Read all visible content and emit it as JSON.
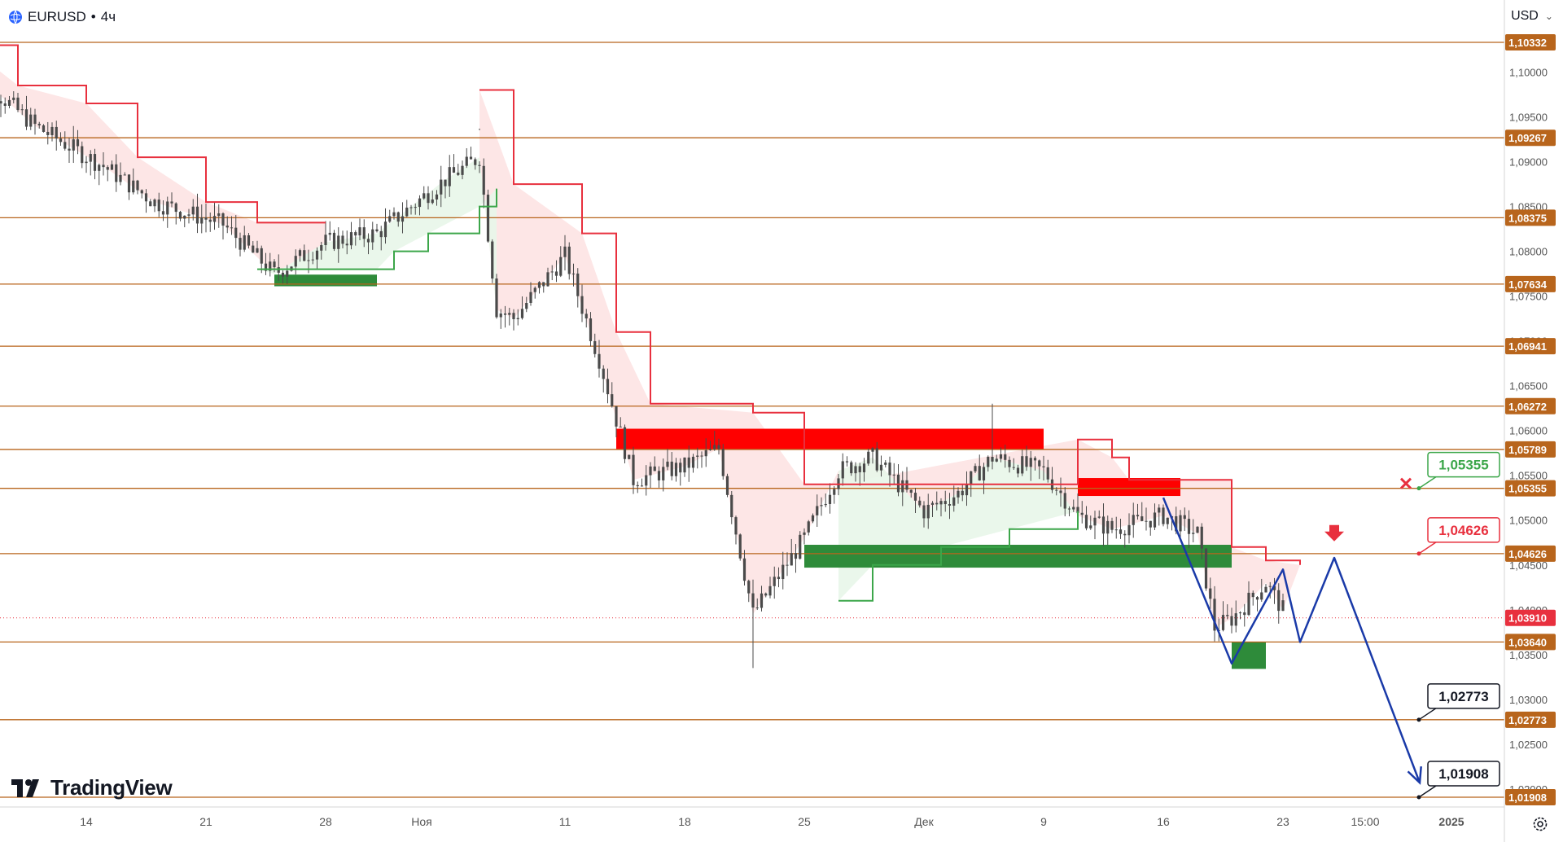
{
  "header": {
    "symbol": "EURUSD",
    "separator": "•",
    "interval": "4ч"
  },
  "currency": {
    "label": "USD"
  },
  "brand": {
    "name": "TradingView"
  },
  "icons": {
    "symbol": "globe-icon",
    "currency_dropdown": "chevron-down-icon",
    "brand": "tradingview-logo-icon",
    "settings": "gear-icon",
    "rejected_marker": "cross-icon",
    "target_marker": "arrow-down-icon"
  },
  "colors": {
    "level_line": "#b8651c",
    "level_tag_bg": "#b8651c",
    "supertrend_down": "#e8303e",
    "supertrend_up": "#3ca64a",
    "down_fill": "#fde3e3",
    "up_fill": "#e8f6e9",
    "supply_zone": "#ff0000",
    "demand_zone": "#2e8b3a",
    "forecast_path": "#1a3aa8",
    "candle": "#4a4a4a",
    "last_price": "#e8303e"
  },
  "chart_data": {
    "type": "candlestick",
    "instrument": "EURUSD",
    "timeframe": "4ч",
    "x_ticks": [
      "14",
      "21",
      "28",
      "Ноя",
      "11",
      "18",
      "25",
      "Дек",
      "9",
      "16",
      "23",
      "15:00",
      "2025"
    ],
    "ylim": [
      1.0175,
      1.1042
    ],
    "y_ticks": [
      "1,10000",
      "1,09500",
      "1,09000",
      "1,08500",
      "1,08000",
      "1,07500",
      "1,07000",
      "1,06500",
      "1,06000",
      "1,05500",
      "1,05000",
      "1,04500",
      "1,04000",
      "1,03500",
      "1,03000",
      "1,02500",
      "1,02000"
    ],
    "levels": [
      {
        "value": 1.10332,
        "label": "1,10332"
      },
      {
        "value": 1.09267,
        "label": "1,09267"
      },
      {
        "value": 1.08375,
        "label": "1,08375"
      },
      {
        "value": 1.07634,
        "label": "1,07634"
      },
      {
        "value": 1.06941,
        "label": "1,06941"
      },
      {
        "value": 1.06272,
        "label": "1,06272"
      },
      {
        "value": 1.05789,
        "label": "1,05789"
      },
      {
        "value": 1.05355,
        "label": "1,05355"
      },
      {
        "value": 1.04626,
        "label": "1,04626"
      },
      {
        "value": 1.0364,
        "label": "1,03640"
      },
      {
        "value": 1.02773,
        "label": "1,02773"
      },
      {
        "value": 1.01908,
        "label": "1,01908"
      }
    ],
    "last_price": {
      "value": 1.0391,
      "label": "1,03910"
    },
    "callouts": [
      {
        "label": "1,05355",
        "value": 1.05355,
        "style": "green"
      },
      {
        "label": "1,04626",
        "value": 1.04626,
        "style": "red"
      },
      {
        "label": "1,02773",
        "value": 1.02773,
        "style": "black"
      },
      {
        "label": "1,01908",
        "value": 1.01908,
        "style": "black"
      }
    ],
    "supply_zones": [
      {
        "from": "2024-11-14",
        "to": "2024-12-09",
        "low": 1.05789,
        "high": 1.0602
      },
      {
        "from": "2024-12-11",
        "to": "2024-12-17",
        "low": 1.0527,
        "high": 1.0547
      }
    ],
    "demand_zones": [
      {
        "from": "2024-10-25",
        "to": "2024-10-31",
        "low": 1.0761,
        "high": 1.0774
      },
      {
        "from": "2024-11-25",
        "to": "2024-12-20",
        "low": 1.0447,
        "high": 1.04725
      },
      {
        "from": "2024-12-20",
        "to": "2024-12-22",
        "low": 1.0334,
        "high": 1.0364
      }
    ],
    "forecast_path": [
      {
        "t": "2024-12-16",
        "price": 1.0525
      },
      {
        "t": "2024-12-20",
        "price": 1.034
      },
      {
        "t": "2024-12-23",
        "price": 1.0445
      },
      {
        "t": "2024-12-24",
        "price": 1.0364
      },
      {
        "t": "2024-12-26",
        "price": 1.0458
      },
      {
        "t": "2024-12-31",
        "price": 1.0207
      }
    ],
    "close_path": [
      {
        "t": "2024-10-08",
        "price": 1.099
      },
      {
        "t": "2024-10-11",
        "price": 1.094
      },
      {
        "t": "2024-10-15",
        "price": 1.0895
      },
      {
        "t": "2024-10-18",
        "price": 1.0855
      },
      {
        "t": "2024-10-22",
        "price": 1.083
      },
      {
        "t": "2024-10-25",
        "price": 1.0775
      },
      {
        "t": "2024-10-28",
        "price": 1.081
      },
      {
        "t": "2024-10-31",
        "price": 1.082
      },
      {
        "t": "2024-11-04",
        "price": 1.088
      },
      {
        "t": "2024-11-06",
        "price": 1.0905
      },
      {
        "t": "2024-11-07",
        "price": 1.0735
      },
      {
        "t": "2024-11-08",
        "price": 1.0725
      },
      {
        "t": "2024-11-11",
        "price": 1.0795
      },
      {
        "t": "2024-11-13",
        "price": 1.068
      },
      {
        "t": "2024-11-15",
        "price": 1.0545
      },
      {
        "t": "2024-11-18",
        "price": 1.056
      },
      {
        "t": "2024-11-20",
        "price": 1.058
      },
      {
        "t": "2024-11-22",
        "price": 1.0395
      },
      {
        "t": "2024-11-25",
        "price": 1.048
      },
      {
        "t": "2024-11-27",
        "price": 1.0555
      },
      {
        "t": "2024-11-29",
        "price": 1.057
      },
      {
        "t": "2024-12-02",
        "price": 1.051
      },
      {
        "t": "2024-12-04",
        "price": 1.053
      },
      {
        "t": "2024-12-06",
        "price": 1.057
      },
      {
        "t": "2024-12-09",
        "price": 1.0555
      },
      {
        "t": "2024-12-11",
        "price": 1.0505
      },
      {
        "t": "2024-12-13",
        "price": 1.049
      },
      {
        "t": "2024-12-16",
        "price": 1.0505
      },
      {
        "t": "2024-12-18",
        "price": 1.0485
      },
      {
        "t": "2024-12-19",
        "price": 1.038
      },
      {
        "t": "2024-12-20",
        "price": 1.039
      },
      {
        "t": "2024-12-22",
        "price": 1.043
      },
      {
        "t": "2024-12-23",
        "price": 1.04
      }
    ],
    "supertrend_down_path": [
      {
        "t": "2024-10-07",
        "price": 1.103
      },
      {
        "t": "2024-10-10",
        "price": 1.0985
      },
      {
        "t": "2024-10-14",
        "price": 1.0965
      },
      {
        "t": "2024-10-17",
        "price": 1.0905
      },
      {
        "t": "2024-10-21",
        "price": 1.0855
      },
      {
        "t": "2024-10-24",
        "price": 1.0832
      },
      {
        "t": "2024-10-28",
        "price": 1.0832
      },
      {
        "t": "2024-11-06",
        "price": 1.098
      },
      {
        "t": "2024-11-08",
        "price": 1.0875
      },
      {
        "t": "2024-11-12",
        "price": 1.082
      },
      {
        "t": "2024-11-14",
        "price": 1.071
      },
      {
        "t": "2024-11-16",
        "price": 1.063
      },
      {
        "t": "2024-11-22",
        "price": 1.062
      },
      {
        "t": "2024-11-25",
        "price": 1.054
      },
      {
        "t": "2024-11-27",
        "price": 1.054
      },
      {
        "t": "2024-12-11",
        "price": 1.059
      },
      {
        "t": "2024-12-13",
        "price": 1.057
      },
      {
        "t": "2024-12-14",
        "price": 1.0545
      },
      {
        "t": "2024-12-20",
        "price": 1.0545
      },
      {
        "t": "2024-12-20",
        "price": 1.047
      },
      {
        "t": "2024-12-22",
        "price": 1.0455
      },
      {
        "t": "2024-12-24",
        "price": 1.045
      }
    ],
    "supertrend_up_path": [
      {
        "t": "2024-10-24",
        "price": 1.078
      },
      {
        "t": "2024-10-31",
        "price": 1.078
      },
      {
        "t": "2024-11-01",
        "price": 1.08
      },
      {
        "t": "2024-11-03",
        "price": 1.082
      },
      {
        "t": "2024-11-06",
        "price": 1.085
      },
      {
        "t": "2024-11-07",
        "price": 1.087
      },
      {
        "t": "2024-11-27",
        "price": 1.041
      },
      {
        "t": "2024-11-29",
        "price": 1.045
      },
      {
        "t": "2024-12-03",
        "price": 1.047
      },
      {
        "t": "2024-12-07",
        "price": 1.049
      },
      {
        "t": "2024-12-11",
        "price": 1.051
      }
    ],
    "candles_range": {
      "from": "2024-10-07",
      "to": "2024-12-23"
    }
  }
}
